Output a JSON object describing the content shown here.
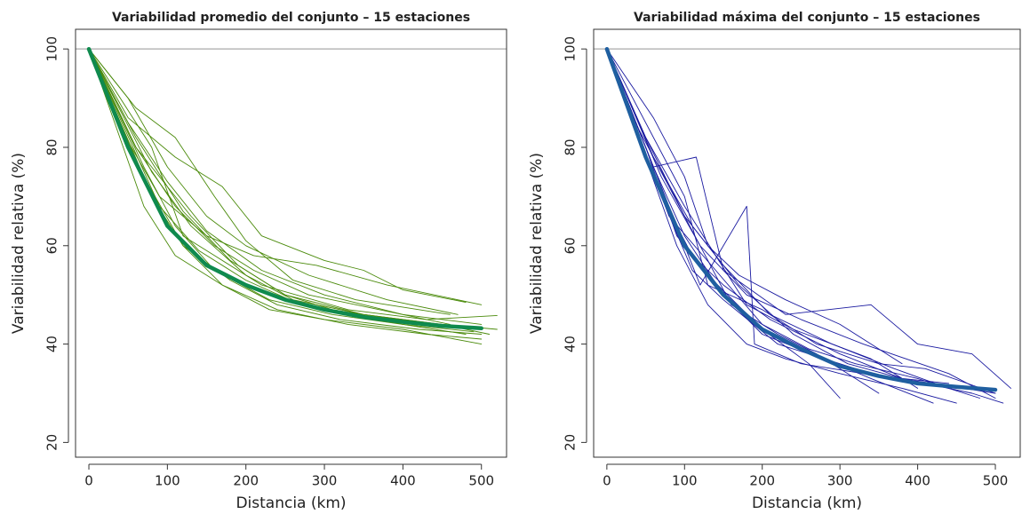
{
  "chart_data": [
    {
      "type": "line",
      "title": "Variabilidad promedio del conjunto – 15 estaciones",
      "xlabel": "Distancia (km)",
      "ylabel": "Variabilidad relativa (%)",
      "xlim": [
        -17,
        532
      ],
      "ylim": [
        17,
        104
      ],
      "xticks": [
        0,
        100,
        200,
        300,
        400,
        500
      ],
      "yticks": [
        20,
        40,
        60,
        80,
        100
      ],
      "hline": 100,
      "hline_color": "#aaaaaa",
      "series": [
        {
          "color": "#4a8a0a",
          "x": [
            0,
            60,
            120,
            180,
            250,
            350,
            450,
            520
          ],
          "values": [
            100,
            82,
            67,
            57,
            50,
            46,
            44,
            43
          ]
        },
        {
          "color": "#4a8a0a",
          "x": [
            0,
            50,
            100,
            150,
            220,
            300,
            400,
            500
          ],
          "values": [
            100,
            85,
            73,
            63,
            55,
            50,
            46,
            44
          ]
        },
        {
          "color": "#4a8a0a",
          "x": [
            0,
            80,
            120,
            160,
            220,
            330,
            430,
            520
          ],
          "values": [
            100,
            80,
            62,
            58,
            52,
            47,
            45,
            45.8
          ]
        },
        {
          "color": "#4a8a0a",
          "x": [
            0,
            70,
            110,
            170,
            230,
            300,
            400,
            500
          ],
          "values": [
            100,
            68,
            58,
            52,
            47,
            45,
            43,
            40
          ]
        },
        {
          "color": "#4a8a0a",
          "x": [
            0,
            40,
            90,
            150,
            210,
            290,
            380,
            500
          ],
          "values": [
            100,
            84,
            70,
            62,
            58,
            56,
            52,
            48
          ]
        },
        {
          "color": "#4a8a0a",
          "x": [
            0,
            70,
            120,
            180,
            240,
            320,
            420,
            500
          ],
          "values": [
            100,
            74,
            60,
            53,
            48,
            45,
            43,
            42
          ]
        },
        {
          "color": "#4a8a0a",
          "x": [
            0,
            50,
            110,
            170,
            220,
            300,
            350,
            400,
            480
          ],
          "values": [
            100,
            86,
            78,
            72,
            62,
            57,
            55,
            51,
            48.5
          ]
        },
        {
          "color": "#4a8a0a",
          "x": [
            0,
            60,
            130,
            190,
            250,
            310,
            400,
            480
          ],
          "values": [
            100,
            80,
            66,
            56,
            50,
            47,
            44,
            42
          ]
        },
        {
          "color": "#4a8a0a",
          "x": [
            0,
            90,
            140,
            200,
            270,
            350,
            450,
            510
          ],
          "values": [
            100,
            68,
            59,
            53,
            48,
            46,
            44,
            42
          ]
        },
        {
          "color": "#4a8a0a",
          "x": [
            0,
            60,
            110,
            160,
            200,
            260,
            340,
            460
          ],
          "values": [
            100,
            88,
            82,
            70,
            61,
            53,
            49,
            46
          ]
        },
        {
          "color": "#4a8a0a",
          "x": [
            0,
            80,
            130,
            200,
            260,
            350,
            440,
            500
          ],
          "values": [
            100,
            75,
            64,
            54,
            49,
            46,
            44,
            43
          ]
        },
        {
          "color": "#4a8a0a",
          "x": [
            0,
            50,
            100,
            150,
            200,
            280,
            380,
            470
          ],
          "values": [
            100,
            90,
            76,
            66,
            60,
            54,
            49,
            46
          ]
        },
        {
          "color": "#4a8a0a",
          "x": [
            0,
            70,
            110,
            160,
            230,
            310,
            400,
            490
          ],
          "values": [
            100,
            76,
            64,
            55,
            49,
            46,
            44,
            42.5
          ]
        },
        {
          "color": "#4a8a0a",
          "x": [
            0,
            60,
            110,
            160,
            210,
            280,
            370,
            460
          ],
          "values": [
            100,
            80,
            68,
            60,
            55,
            50,
            47,
            44
          ]
        },
        {
          "color": "#4a8a0a",
          "x": [
            0,
            80,
            120,
            170,
            240,
            330,
            430,
            500
          ],
          "values": [
            100,
            70,
            60,
            52,
            47,
            44,
            42,
            41
          ]
        }
      ],
      "fit": {
        "color": "#0f8a4e",
        "x": [
          0,
          50,
          100,
          150,
          200,
          250,
          300,
          350,
          400,
          450,
          500
        ],
        "values": [
          100,
          80,
          64,
          56,
          52,
          49,
          47,
          45.5,
          44.5,
          43.7,
          43.2
        ]
      }
    },
    {
      "type": "line",
      "title": "Variabilidad máxima del conjunto – 15 estaciones",
      "xlabel": "Distancia (km)",
      "ylabel": "Variabilidad relativa (%)",
      "xlim": [
        -17,
        532
      ],
      "ylim": [
        17,
        104
      ],
      "xticks": [
        0,
        100,
        200,
        300,
        400,
        500
      ],
      "yticks": [
        20,
        40,
        60,
        80,
        100
      ],
      "hline": 100,
      "hline_color": "#aaaaaa",
      "series": [
        {
          "color": "#1a1aa0",
          "x": [
            0,
            60,
            115,
            150,
            230,
            340,
            400,
            470,
            520
          ],
          "values": [
            100,
            76,
            78,
            55,
            46,
            48,
            40,
            38,
            31
          ]
        },
        {
          "color": "#1a1aa0",
          "x": [
            0,
            70,
            110,
            150,
            210,
            300,
            380,
            470,
            510
          ],
          "values": [
            100,
            70,
            58,
            52,
            45,
            38,
            33,
            30,
            28
          ]
        },
        {
          "color": "#1a1aa0",
          "x": [
            0,
            50,
            90,
            130,
            200,
            260,
            300
          ],
          "values": [
            100,
            80,
            62,
            54,
            43,
            36,
            29
          ]
        },
        {
          "color": "#1a1aa0",
          "x": [
            0,
            80,
            120,
            180,
            190,
            250,
            330,
            420,
            500
          ],
          "values": [
            100,
            68,
            52,
            68,
            40,
            36,
            34,
            32,
            30
          ]
        },
        {
          "color": "#1a1aa0",
          "x": [
            0,
            60,
            100,
            150,
            200,
            280,
            360,
            460
          ],
          "values": [
            100,
            76,
            62,
            50,
            42,
            37,
            33,
            31
          ]
        },
        {
          "color": "#1a1aa0",
          "x": [
            0,
            60,
            100,
            130,
            170,
            230,
            300,
            380
          ],
          "values": [
            100,
            86,
            74,
            60,
            54,
            49,
            44,
            36
          ]
        },
        {
          "color": "#1a1aa0",
          "x": [
            0,
            70,
            110,
            150,
            220,
            280,
            340,
            420
          ],
          "values": [
            100,
            70,
            55,
            49,
            40,
            37,
            33,
            28
          ]
        },
        {
          "color": "#1a1aa0",
          "x": [
            0,
            100,
            130,
            200,
            270,
            350,
            410,
            500
          ],
          "values": [
            100,
            70,
            52,
            47,
            40,
            36,
            35,
            30
          ]
        },
        {
          "color": "#1a1aa0",
          "x": [
            0,
            50,
            100,
            150,
            210,
            290,
            370,
            440
          ],
          "values": [
            100,
            82,
            66,
            56,
            46,
            40,
            35,
            31
          ]
        },
        {
          "color": "#1a1aa0",
          "x": [
            0,
            60,
            110,
            170,
            240,
            310,
            380,
            440
          ],
          "values": [
            100,
            78,
            64,
            52,
            42,
            36,
            33,
            32
          ]
        },
        {
          "color": "#1a1aa0",
          "x": [
            0,
            80,
            140,
            200,
            260,
            320,
            400,
            480
          ],
          "values": [
            100,
            66,
            55,
            44,
            39,
            36,
            33,
            29
          ]
        },
        {
          "color": "#1a1aa0",
          "x": [
            0,
            40,
            80,
            120,
            180,
            250,
            330,
            440,
            500
          ],
          "values": [
            100,
            84,
            72,
            60,
            50,
            45,
            40,
            34,
            29
          ]
        },
        {
          "color": "#1a1aa0",
          "x": [
            0,
            90,
            130,
            180,
            230,
            300,
            380,
            450
          ],
          "values": [
            100,
            60,
            48,
            40,
            37,
            34,
            31,
            28
          ]
        },
        {
          "color": "#1a1aa0",
          "x": [
            0,
            50,
            100,
            140,
            180,
            240,
            340,
            400
          ],
          "values": [
            100,
            82,
            68,
            58,
            48,
            43,
            37,
            31
          ]
        },
        {
          "color": "#1a1aa0",
          "x": [
            0,
            70,
            120,
            160,
            220,
            270,
            350
          ],
          "values": [
            100,
            74,
            60,
            48,
            42,
            38,
            30
          ]
        }
      ],
      "fit": {
        "color": "#1f5fa0",
        "x": [
          0,
          50,
          100,
          150,
          200,
          250,
          300,
          350,
          400,
          450,
          500
        ],
        "values": [
          100,
          78,
          60,
          50,
          43,
          39,
          35.5,
          33.5,
          32,
          31.3,
          30.7
        ]
      }
    }
  ]
}
